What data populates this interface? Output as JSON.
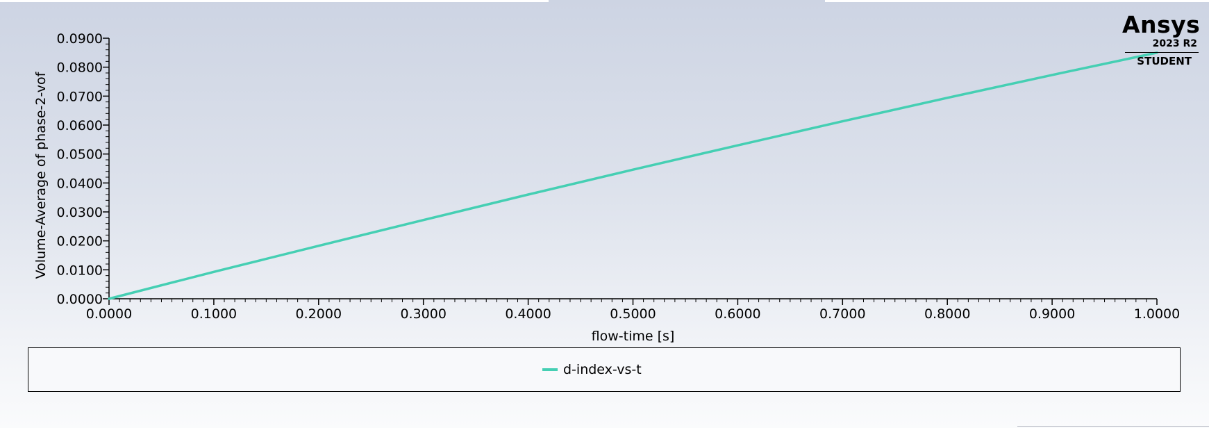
{
  "logo": {
    "brand": "Ansys",
    "version": "2023 R2",
    "edition": "STUDENT"
  },
  "colors": {
    "series": "#45cfb3",
    "axis": "#000000"
  },
  "chart_data": {
    "type": "line",
    "title": "",
    "xlabel": "flow-time [s]",
    "ylabel": "Volume-Average of phase-2-vof",
    "xlim": [
      0.0,
      1.0
    ],
    "ylim": [
      0.0,
      0.09
    ],
    "x_ticks": [
      "0.0000",
      "0.1000",
      "0.2000",
      "0.3000",
      "0.4000",
      "0.5000",
      "0.6000",
      "0.7000",
      "0.8000",
      "0.9000",
      "1.0000"
    ],
    "y_ticks": [
      "0.0000",
      "0.0100",
      "0.0200",
      "0.0300",
      "0.0400",
      "0.0500",
      "0.0600",
      "0.0700",
      "0.0800",
      "0.0900"
    ],
    "grid": false,
    "legend_position": "bottom",
    "series": [
      {
        "name": "d-index-vs-t",
        "x": [
          0.0,
          0.1,
          0.2,
          0.3,
          0.4,
          0.5,
          0.6,
          0.7,
          0.8,
          0.9,
          1.0
        ],
        "y": [
          0.0,
          0.0093,
          0.0183,
          0.0272,
          0.036,
          0.0446,
          0.053,
          0.0613,
          0.0694,
          0.0773,
          0.085
        ]
      }
    ]
  }
}
